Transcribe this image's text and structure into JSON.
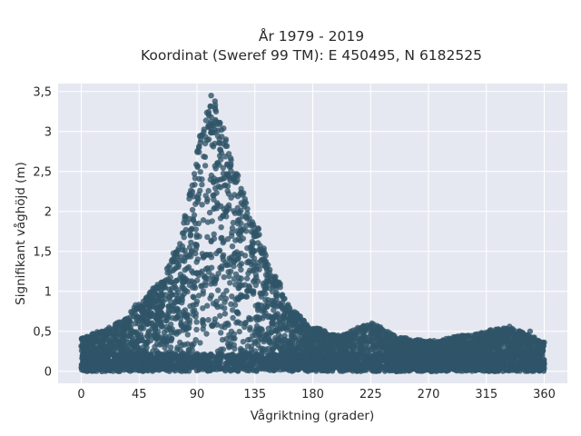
{
  "chart_data": {
    "type": "scatter",
    "title": "År 1979 - 2019",
    "subtitle": "Koordinat (Sweref 99 TM): E 450495, N 6182525",
    "xlabel": "Vågriktning (grader)",
    "ylabel": "Signifikant våghöjd (m)",
    "xlim": [
      -18,
      378
    ],
    "ylim": [
      -0.15,
      3.6
    ],
    "xticks": [
      0,
      45,
      90,
      135,
      180,
      225,
      270,
      315,
      360
    ],
    "xtick_labels": [
      "0",
      "45",
      "90",
      "135",
      "180",
      "225",
      "270",
      "315",
      "360"
    ],
    "yticks": [
      0,
      0.5,
      1,
      1.5,
      2,
      2.5,
      3,
      3.5
    ],
    "ytick_labels": [
      "0",
      "0,5",
      "1",
      "1,5",
      "2",
      "2,5",
      "3",
      "3,5"
    ],
    "grid": true,
    "marker_color": "#2f5468",
    "plot_background": "#e6e8f1",
    "grid_color": "#ffffff",
    "envelope": {
      "description_points_direction_deg": [
        0,
        15,
        30,
        45,
        60,
        75,
        85,
        95,
        102,
        110,
        120,
        135,
        150,
        165,
        180,
        200,
        225,
        250,
        270,
        300,
        330,
        360
      ],
      "upper_height_m": [
        0.42,
        0.5,
        0.62,
        0.85,
        1.1,
        1.55,
        2.3,
        3.15,
        3.45,
        3.1,
        2.5,
        1.85,
        1.2,
        0.75,
        0.55,
        0.45,
        0.6,
        0.42,
        0.38,
        0.45,
        0.55,
        0.4
      ],
      "lower_height_m": 0.0
    },
    "notable_points": [
      {
        "x": 101,
        "y": 3.45
      },
      {
        "x": 104,
        "y": 3.38
      },
      {
        "x": 226,
        "y": 0.6
      },
      {
        "x": 333,
        "y": 0.56
      },
      {
        "x": 349,
        "y": 0.5
      }
    ]
  }
}
